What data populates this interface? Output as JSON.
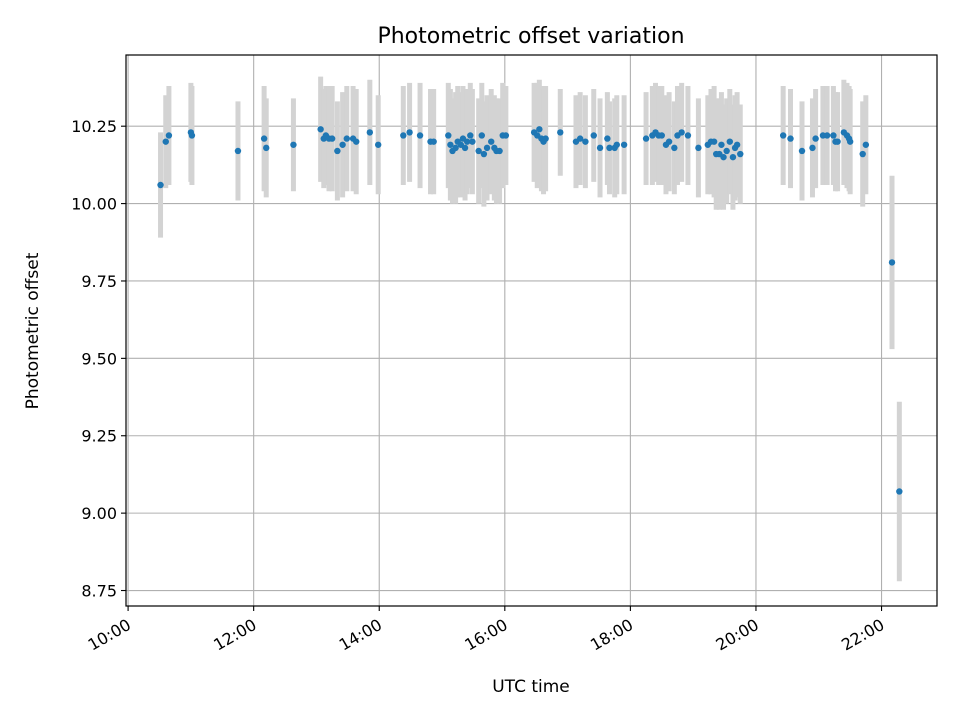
{
  "chart_data": {
    "type": "scatter",
    "title": "Photometric offset variation",
    "xlabel": "UTC time",
    "ylabel": "Photometric offset",
    "x_ticks": [
      "10:00",
      "12:00",
      "14:00",
      "16:00",
      "18:00",
      "20:00",
      "22:00"
    ],
    "y_ticks": [
      "8.75",
      "9.00",
      "9.25",
      "9.50",
      "9.75",
      "10.00",
      "10.25"
    ],
    "xlim": [
      "09:58",
      "22:53"
    ],
    "ylim": [
      8.7,
      10.48
    ],
    "grid": true,
    "colors": {
      "points": "#1f77b4",
      "errorbars": "#d3d3d3",
      "grid": "#b0b0b0"
    },
    "points": [
      {
        "x": "10:31",
        "y": 10.06,
        "err": 0.17
      },
      {
        "x": "10:36",
        "y": 10.2,
        "err": 0.15
      },
      {
        "x": "10:39",
        "y": 10.22,
        "err": 0.16
      },
      {
        "x": "11:00",
        "y": 10.23,
        "err": 0.16
      },
      {
        "x": "11:01",
        "y": 10.22,
        "err": 0.16
      },
      {
        "x": "11:45",
        "y": 10.17,
        "err": 0.16
      },
      {
        "x": "12:10",
        "y": 10.21,
        "err": 0.17
      },
      {
        "x": "12:12",
        "y": 10.18,
        "err": 0.16
      },
      {
        "x": "12:38",
        "y": 10.19,
        "err": 0.15
      },
      {
        "x": "13:04",
        "y": 10.24,
        "err": 0.17
      },
      {
        "x": "13:07",
        "y": 10.21,
        "err": 0.16
      },
      {
        "x": "13:09",
        "y": 10.22,
        "err": 0.16
      },
      {
        "x": "13:12",
        "y": 10.21,
        "err": 0.17
      },
      {
        "x": "13:15",
        "y": 10.21,
        "err": 0.17
      },
      {
        "x": "13:20",
        "y": 10.17,
        "err": 0.16
      },
      {
        "x": "13:25",
        "y": 10.19,
        "err": 0.17
      },
      {
        "x": "13:29",
        "y": 10.21,
        "err": 0.17
      },
      {
        "x": "13:35",
        "y": 10.21,
        "err": 0.17
      },
      {
        "x": "13:38",
        "y": 10.2,
        "err": 0.17
      },
      {
        "x": "13:51",
        "y": 10.23,
        "err": 0.17
      },
      {
        "x": "13:59",
        "y": 10.19,
        "err": 0.16
      },
      {
        "x": "14:23",
        "y": 10.22,
        "err": 0.16
      },
      {
        "x": "14:29",
        "y": 10.23,
        "err": 0.16
      },
      {
        "x": "14:39",
        "y": 10.22,
        "err": 0.17
      },
      {
        "x": "14:49",
        "y": 10.2,
        "err": 0.17
      },
      {
        "x": "14:52",
        "y": 10.2,
        "err": 0.17
      },
      {
        "x": "15:06",
        "y": 10.22,
        "err": 0.17
      },
      {
        "x": "15:08",
        "y": 10.19,
        "err": 0.18
      },
      {
        "x": "15:10",
        "y": 10.17,
        "err": 0.17
      },
      {
        "x": "15:13",
        "y": 10.18,
        "err": 0.18
      },
      {
        "x": "15:15",
        "y": 10.2,
        "err": 0.18
      },
      {
        "x": "15:18",
        "y": 10.19,
        "err": 0.17
      },
      {
        "x": "15:20",
        "y": 10.21,
        "err": 0.17
      },
      {
        "x": "15:22",
        "y": 10.18,
        "err": 0.17
      },
      {
        "x": "15:24",
        "y": 10.2,
        "err": 0.17
      },
      {
        "x": "15:27",
        "y": 10.22,
        "err": 0.17
      },
      {
        "x": "15:29",
        "y": 10.2,
        "err": 0.17
      },
      {
        "x": "15:35",
        "y": 10.17,
        "err": 0.17
      },
      {
        "x": "15:38",
        "y": 10.22,
        "err": 0.17
      },
      {
        "x": "15:40",
        "y": 10.16,
        "err": 0.17
      },
      {
        "x": "15:43",
        "y": 10.18,
        "err": 0.17
      },
      {
        "x": "15:47",
        "y": 10.2,
        "err": 0.17
      },
      {
        "x": "15:50",
        "y": 10.18,
        "err": 0.17
      },
      {
        "x": "15:52",
        "y": 10.17,
        "err": 0.17
      },
      {
        "x": "15:55",
        "y": 10.17,
        "err": 0.17
      },
      {
        "x": "15:58",
        "y": 10.22,
        "err": 0.17
      },
      {
        "x": "16:01",
        "y": 10.22,
        "err": 0.16
      },
      {
        "x": "16:28",
        "y": 10.23,
        "err": 0.16
      },
      {
        "x": "16:31",
        "y": 10.22,
        "err": 0.17
      },
      {
        "x": "16:33",
        "y": 10.24,
        "err": 0.16
      },
      {
        "x": "16:35",
        "y": 10.21,
        "err": 0.17
      },
      {
        "x": "16:37",
        "y": 10.2,
        "err": 0.17
      },
      {
        "x": "16:39",
        "y": 10.21,
        "err": 0.17
      },
      {
        "x": "16:53",
        "y": 10.23,
        "err": 0.14
      },
      {
        "x": "17:08",
        "y": 10.2,
        "err": 0.15
      },
      {
        "x": "17:12",
        "y": 10.21,
        "err": 0.15
      },
      {
        "x": "17:17",
        "y": 10.2,
        "err": 0.15
      },
      {
        "x": "17:25",
        "y": 10.22,
        "err": 0.15
      },
      {
        "x": "17:31",
        "y": 10.18,
        "err": 0.16
      },
      {
        "x": "17:38",
        "y": 10.21,
        "err": 0.15
      },
      {
        "x": "17:40",
        "y": 10.18,
        "err": 0.15
      },
      {
        "x": "17:45",
        "y": 10.18,
        "err": 0.16
      },
      {
        "x": "17:47",
        "y": 10.19,
        "err": 0.16
      },
      {
        "x": "17:54",
        "y": 10.19,
        "err": 0.16
      },
      {
        "x": "18:15",
        "y": 10.21,
        "err": 0.15
      },
      {
        "x": "18:21",
        "y": 10.22,
        "err": 0.16
      },
      {
        "x": "18:24",
        "y": 10.23,
        "err": 0.16
      },
      {
        "x": "18:27",
        "y": 10.22,
        "err": 0.16
      },
      {
        "x": "18:30",
        "y": 10.22,
        "err": 0.16
      },
      {
        "x": "18:34",
        "y": 10.19,
        "err": 0.16
      },
      {
        "x": "18:37",
        "y": 10.2,
        "err": 0.16
      },
      {
        "x": "18:42",
        "y": 10.18,
        "err": 0.15
      },
      {
        "x": "18:45",
        "y": 10.22,
        "err": 0.16
      },
      {
        "x": "18:49",
        "y": 10.23,
        "err": 0.16
      },
      {
        "x": "18:55",
        "y": 10.22,
        "err": 0.16
      },
      {
        "x": "19:05",
        "y": 10.18,
        "err": 0.16
      },
      {
        "x": "19:14",
        "y": 10.19,
        "err": 0.16
      },
      {
        "x": "19:17",
        "y": 10.2,
        "err": 0.17
      },
      {
        "x": "19:20",
        "y": 10.2,
        "err": 0.18
      },
      {
        "x": "19:22",
        "y": 10.16,
        "err": 0.18
      },
      {
        "x": "19:25",
        "y": 10.16,
        "err": 0.18
      },
      {
        "x": "19:27",
        "y": 10.19,
        "err": 0.17
      },
      {
        "x": "19:29",
        "y": 10.15,
        "err": 0.17
      },
      {
        "x": "19:32",
        "y": 10.17,
        "err": 0.17
      },
      {
        "x": "19:35",
        "y": 10.2,
        "err": 0.17
      },
      {
        "x": "19:38",
        "y": 10.15,
        "err": 0.17
      },
      {
        "x": "19:40",
        "y": 10.18,
        "err": 0.17
      },
      {
        "x": "19:42",
        "y": 10.19,
        "err": 0.17
      },
      {
        "x": "19:45",
        "y": 10.16,
        "err": 0.16
      },
      {
        "x": "20:26",
        "y": 10.22,
        "err": 0.16
      },
      {
        "x": "20:33",
        "y": 10.21,
        "err": 0.16
      },
      {
        "x": "20:44",
        "y": 10.17,
        "err": 0.16
      },
      {
        "x": "20:54",
        "y": 10.18,
        "err": 0.16
      },
      {
        "x": "20:57",
        "y": 10.21,
        "err": 0.16
      },
      {
        "x": "21:04",
        "y": 10.22,
        "err": 0.16
      },
      {
        "x": "21:08",
        "y": 10.22,
        "err": 0.16
      },
      {
        "x": "21:14",
        "y": 10.22,
        "err": 0.16
      },
      {
        "x": "21:16",
        "y": 10.2,
        "err": 0.16
      },
      {
        "x": "21:18",
        "y": 10.2,
        "err": 0.16
      },
      {
        "x": "21:24",
        "y": 10.23,
        "err": 0.17
      },
      {
        "x": "21:27",
        "y": 10.22,
        "err": 0.17
      },
      {
        "x": "21:29",
        "y": 10.21,
        "err": 0.17
      },
      {
        "x": "21:30",
        "y": 10.2,
        "err": 0.17
      },
      {
        "x": "21:42",
        "y": 10.16,
        "err": 0.17
      },
      {
        "x": "21:45",
        "y": 10.19,
        "err": 0.16
      },
      {
        "x": "22:10",
        "y": 9.81,
        "err": 0.28
      },
      {
        "x": "22:17",
        "y": 9.07,
        "err": 0.29
      }
    ]
  }
}
